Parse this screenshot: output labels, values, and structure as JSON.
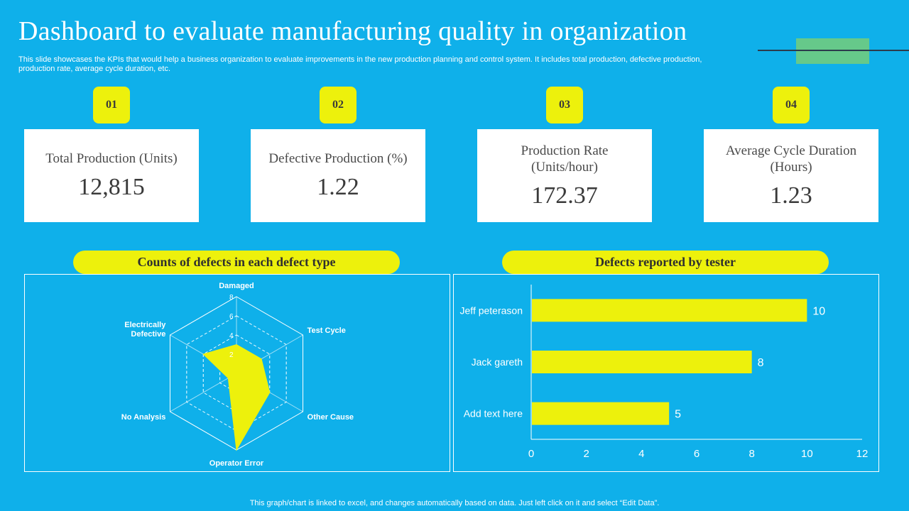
{
  "header": {
    "title": "Dashboard to evaluate manufacturing quality in organization",
    "subtitle": "This slide showcases the KPIs that would help a business organization to evaluate improvements in the new production planning and control system. It includes total production, defective production, production rate, average cycle duration, etc."
  },
  "kpis": [
    {
      "badge": "01",
      "label": "Total Production (Units)",
      "value": "12,815"
    },
    {
      "badge": "02",
      "label": "Defective Production (%)",
      "value": "1.22"
    },
    {
      "badge": "03",
      "label": "Production Rate (Units/hour)",
      "value": "172.37"
    },
    {
      "badge": "04",
      "label": "Average Cycle Duration (Hours)",
      "value": "1.23"
    }
  ],
  "sections": {
    "radar_title": "Counts of defects in each defect type",
    "bar_title": "Defects reported by tester"
  },
  "footer": "This graph/chart is linked to excel, and changes automatically based on data. Just left click on it and select “Edit Data”.",
  "colors": {
    "background": "#0fb0ea",
    "accent": "#edf10c",
    "card": "#ffffff"
  },
  "chart_data": [
    {
      "type": "radar",
      "title": "Counts of defects in each defect type",
      "categories": [
        "Damaged",
        "Test Cycle",
        "Other Cause",
        "Operator Error",
        "No Analysis",
        "Electrically Defective"
      ],
      "values": [
        3,
        3,
        4,
        8,
        1,
        4
      ],
      "rlim": [
        0,
        8
      ],
      "ticks": [
        2,
        4,
        6,
        8
      ]
    },
    {
      "type": "bar",
      "orientation": "horizontal",
      "title": "Defects reported by tester",
      "categories": [
        "Jeff peterason",
        "Jack gareth",
        "Add text here"
      ],
      "values": [
        10,
        8,
        5
      ],
      "xlim": [
        0,
        12
      ],
      "xticks": [
        0,
        2,
        4,
        6,
        8,
        10,
        12
      ]
    }
  ]
}
